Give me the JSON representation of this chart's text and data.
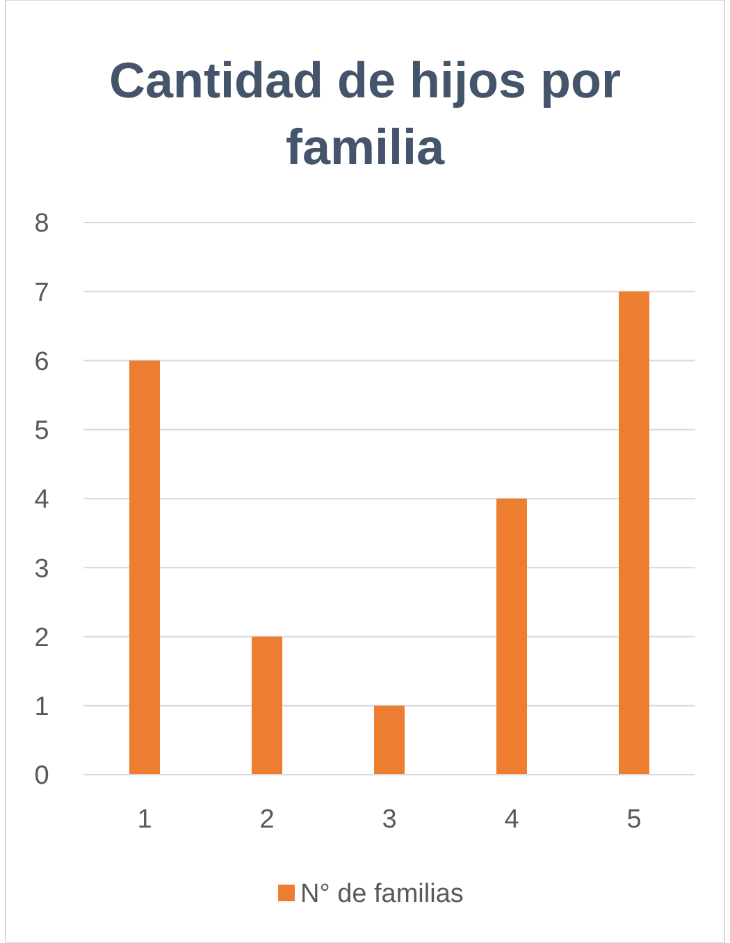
{
  "chart_data": {
    "type": "bar",
    "title": "Cantidad de hijos por familia",
    "categories": [
      "1",
      "2",
      "3",
      "4",
      "5"
    ],
    "series": [
      {
        "name": "N° de familias",
        "color": "#ed7d31",
        "values": [
          6,
          2,
          1,
          4,
          7
        ]
      }
    ],
    "ylim": [
      0,
      8
    ],
    "yticks": [
      0,
      1,
      2,
      3,
      4,
      5,
      6,
      7,
      8
    ],
    "grid": "y",
    "legend": "bottom"
  }
}
